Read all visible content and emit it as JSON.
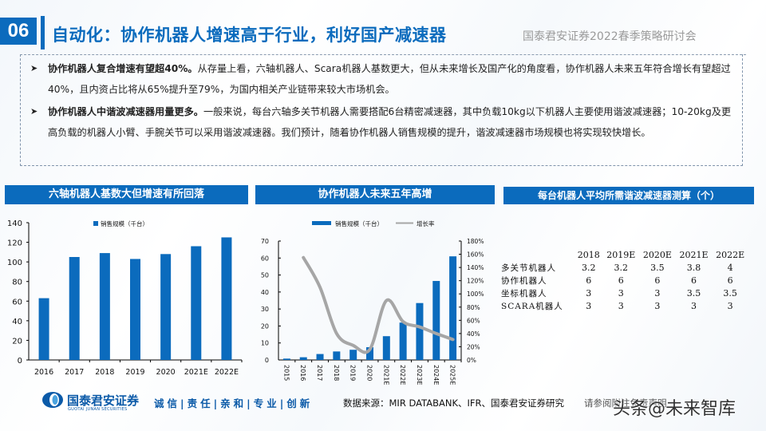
{
  "header": {
    "section_number": "06",
    "title": "自动化：协作机器人增速高于行业，利好国产减速器",
    "event": "国泰君安证券2022春季策略研讨会"
  },
  "bullets": [
    {
      "bold": "协作机器人复合增速有望超40%。",
      "text": "从存量上看，六轴机器人、Scara机器人基数更大，但从未来增长及国产化的角度看，协作机器人未来五年符合增长有望超过40%，且内资占比将从65%提升至79%，为国内相关产业链带来较大市场机会。"
    },
    {
      "bold": "协作机器人中谐波减速器用量更多。",
      "text": "一般来说，每台六轴多关节机器人需要搭配6台精密减速器，其中负载10kg以下机器人主要使用谐波减速器；10-20kg及更高负载的机器人小臂、手腕关节可以采用谐波减速器。我们预计，随着协作机器人销售规模的提升，谐波减速器市场规模也将实现较快增长。"
    }
  ],
  "panels": {
    "left_title": "六轴机器人基数大但增速有所回落",
    "middle_title": "协作机器人未来五年高增",
    "right_title": "每台机器人平均所需谐波减速器测算（个）"
  },
  "chart_data": [
    {
      "type": "bar",
      "title": "六轴机器人基数大但增速有所回落",
      "legend": [
        "销售规模（千台）"
      ],
      "legend_position": "top",
      "categories": [
        "2016",
        "2017",
        "2018",
        "2019",
        "2020",
        "2021E",
        "2022E"
      ],
      "series": [
        {
          "name": "销售规模（千台）",
          "values": [
            63,
            105,
            109,
            103,
            108,
            116,
            125
          ],
          "color": "#0b6bbd"
        }
      ],
      "ylim": [
        0,
        140
      ],
      "yticks": [
        0,
        20,
        40,
        60,
        80,
        100,
        120,
        140
      ],
      "grid": false
    },
    {
      "type": "bar+line",
      "title": "协作机器人未来五年高增",
      "legend": [
        "销售规模（千台）",
        "增长率"
      ],
      "legend_position": "top",
      "categories": [
        "2015",
        "2016",
        "2017",
        "2018",
        "2019",
        "2020",
        "2021E",
        "2022E",
        "2023E",
        "2024E",
        "2025E"
      ],
      "series": [
        {
          "name": "销售规模（千台）",
          "axis": "left",
          "type": "bar",
          "values": [
            0.8,
            1.6,
            3.5,
            5.0,
            6.0,
            7.5,
            14.0,
            22.0,
            33.5,
            46.5,
            61.0
          ],
          "color": "#0b6bbd"
        },
        {
          "name": "增长率",
          "axis": "right",
          "type": "line",
          "values": [
            null,
            155,
            110,
            40,
            22,
            16,
            90,
            58,
            50,
            40,
            31
          ],
          "unit": "%",
          "color": "#a6a6a6"
        }
      ],
      "ylim_left": [
        0,
        70
      ],
      "yticks_left": [
        0,
        10,
        20,
        30,
        40,
        50,
        60,
        70
      ],
      "ylim_right": [
        0,
        180
      ],
      "yticks_right": [
        "0%",
        "20%",
        "40%",
        "60%",
        "80%",
        "100%",
        "120%",
        "140%",
        "160%",
        "180%"
      ],
      "grid": false
    },
    {
      "type": "table",
      "title": "每台机器人平均所需谐波减速器测算（个）",
      "columns": [
        "",
        "2018",
        "2019E",
        "2020E",
        "2021E",
        "2022E"
      ],
      "rows": [
        [
          "多关节机器人",
          "3.2",
          "3.2",
          "3.5",
          "3.8",
          "4"
        ],
        [
          "协作机器人",
          "6",
          "6",
          "6",
          "6",
          "6"
        ],
        [
          "坐标机器人",
          "3",
          "3",
          "3",
          "3.5",
          "3.5"
        ],
        [
          "SCARA机器人",
          "3",
          "3",
          "3",
          "3",
          "3"
        ]
      ]
    }
  ],
  "footer": {
    "brand_cn": "国泰君安证券",
    "brand_en": "GUOTAI JUNAN SECURITIES",
    "motto": "诚信|责任|亲和|专业|创新",
    "source": "数据来源：MIR DATABANK、IFR、国泰君安证券研究",
    "disclaimer": "请参阅附注免责声明",
    "watermark": "头条@未来智库"
  }
}
